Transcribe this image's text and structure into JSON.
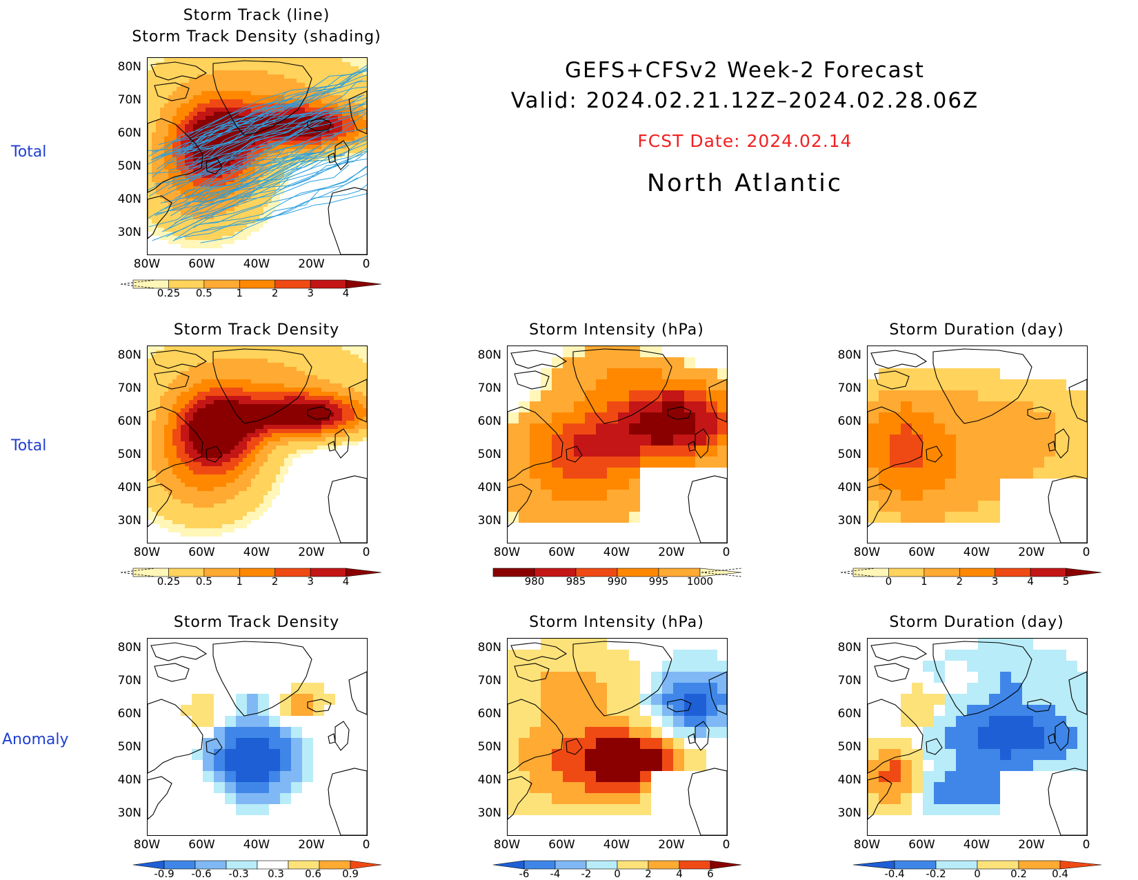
{
  "header": {
    "line1": "GEFS+CFSv2 Week-2 Forecast",
    "line2": "Valid: 2024.02.21.12Z–2024.02.28.06Z",
    "fcst_date": "FCST Date: 2024.02.14",
    "region": "North Atlantic"
  },
  "row_labels": [
    "Total",
    "Total",
    "Anomaly"
  ],
  "axes": {
    "lat": [
      "80N",
      "70N",
      "60N",
      "50N",
      "40N",
      "30N"
    ],
    "lon": [
      "80W",
      "60W",
      "40W",
      "20W",
      "0"
    ]
  },
  "panels": [
    {
      "id": "track",
      "title1": "Storm Track (line)",
      "title2": "Storm Track Density (shading)",
      "colorbar": {
        "labels": [
          "0.25",
          "0.5",
          "1",
          "2",
          "3",
          "4"
        ],
        "colors": [
          "#fff6b8",
          "#ffd35c",
          "#ffaa33",
          "#ff8800",
          "#f04a14",
          "#c41616",
          "#8a0000"
        ],
        "under": "dashed-left"
      }
    },
    {
      "id": "density-total",
      "title1": "Storm Track Density",
      "colorbar": {
        "labels": [
          "0.25",
          "0.5",
          "1",
          "2",
          "3",
          "4"
        ],
        "colors": [
          "#fff6b8",
          "#ffd35c",
          "#ffaa33",
          "#ff8800",
          "#f04a14",
          "#c41616",
          "#8a0000"
        ],
        "under": "dashed-left"
      }
    },
    {
      "id": "intensity-total",
      "title1": "Storm Intensity (hPa)",
      "colorbar": {
        "labels": [
          "980",
          "985",
          "990",
          "995",
          "1000"
        ],
        "colors": [
          "#8a0000",
          "#c41616",
          "#f04a14",
          "#ff8800",
          "#ffaa33",
          "#fff6b8"
        ],
        "under": "dashed-right"
      }
    },
    {
      "id": "duration-total",
      "title1": "Storm Duration (day)",
      "colorbar": {
        "labels": [
          "0",
          "1",
          "2",
          "3",
          "4",
          "5"
        ],
        "colors": [
          "#fff6b8",
          "#ffd35c",
          "#ffaa33",
          "#ff8800",
          "#f04a14",
          "#c41616",
          "#8a0000"
        ],
        "under": "dashed-left"
      }
    },
    {
      "id": "density-anom",
      "title1": "Storm Track Density",
      "colorbar": {
        "labels": [
          "-0.9",
          "-0.6",
          "-0.3",
          "0.3",
          "0.6",
          "0.9"
        ],
        "colors": [
          "#1f5fd6",
          "#3f86e8",
          "#7fb8f4",
          "#b8ecf8",
          "#ffffff",
          "#fde27a",
          "#ffaa33",
          "#f04a14"
        ],
        "under": "arrow"
      }
    },
    {
      "id": "intensity-anom",
      "title1": "Storm Intensity (hPa)",
      "colorbar": {
        "labels": [
          "-6",
          "-4",
          "-2",
          "0",
          "2",
          "4",
          "6"
        ],
        "colors": [
          "#1f5fd6",
          "#3f86e8",
          "#7fb8f4",
          "#b8ecf8",
          "#fde27a",
          "#ffaa33",
          "#f04a14",
          "#8a0000"
        ],
        "under": "arrow"
      }
    },
    {
      "id": "duration-anom",
      "title1": "Storm Duration (day)",
      "colorbar": {
        "labels": [
          "-0.4",
          "-0.2",
          "0",
          "0.2",
          "0.4"
        ],
        "colors": [
          "#1f5fd6",
          "#3f86e8",
          "#b8ecf8",
          "#fde27a",
          "#ffaa33",
          "#f04a14"
        ],
        "under": "arrow"
      }
    }
  ]
}
